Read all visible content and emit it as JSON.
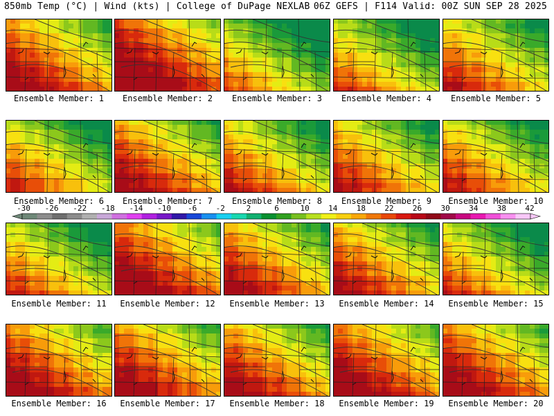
{
  "header": {
    "left": "850mb Temp (°C) | Wind (kts) | College of DuPage NEXLAB",
    "right": "06Z GEFS | F114 Valid: 00Z SUN SEP 28 2025"
  },
  "member_label_prefix": "Ensemble Member:",
  "members": [
    {
      "number": "1",
      "warmth": 0.62
    },
    {
      "number": "2",
      "warmth": 0.78
    },
    {
      "number": "3",
      "warmth": 0.3
    },
    {
      "number": "4",
      "warmth": 0.36
    },
    {
      "number": "5",
      "warmth": 0.48
    },
    {
      "number": "6",
      "warmth": 0.42
    },
    {
      "number": "7",
      "warmth": 0.6
    },
    {
      "number": "8",
      "warmth": 0.46
    },
    {
      "number": "9",
      "warmth": 0.5
    },
    {
      "number": "10",
      "warmth": 0.47
    },
    {
      "number": "11",
      "warmth": 0.4
    },
    {
      "number": "12",
      "warmth": 0.7
    },
    {
      "number": "13",
      "warmth": 0.58
    },
    {
      "number": "14",
      "warmth": 0.55
    },
    {
      "number": "15",
      "warmth": 0.38
    },
    {
      "number": "16",
      "warmth": 0.66
    },
    {
      "number": "17",
      "warmth": 0.64
    },
    {
      "number": "18",
      "warmth": 0.6
    },
    {
      "number": "19",
      "warmth": 0.68
    },
    {
      "number": "20",
      "warmth": 0.66
    }
  ],
  "colorbar": {
    "ticks": [
      "-30",
      "-26",
      "-22",
      "-18",
      "-14",
      "-10",
      "-6",
      "-2",
      "2",
      "6",
      "10",
      "14",
      "18",
      "22",
      "26",
      "30",
      "34",
      "38",
      "42"
    ],
    "colors": [
      "#6e8878",
      "#8c8c8c",
      "#6e6e6e",
      "#8c8c8c",
      "#b0b0b0",
      "#c8a8d8",
      "#d070e0",
      "#e040f0",
      "#b020e0",
      "#7818c8",
      "#3018a8",
      "#1848d8",
      "#1890f0",
      "#18d0f0",
      "#18d8b0",
      "#10b070",
      "#089030",
      "#30a020",
      "#78c020",
      "#b8e020",
      "#f0f018",
      "#f8d010",
      "#f8a808",
      "#f07808",
      "#e84808",
      "#d81810",
      "#b80818",
      "#900818",
      "#a00848",
      "#c80880",
      "#e818b0",
      "#f050d8",
      "#f890f0",
      "#f8c8f8"
    ]
  }
}
